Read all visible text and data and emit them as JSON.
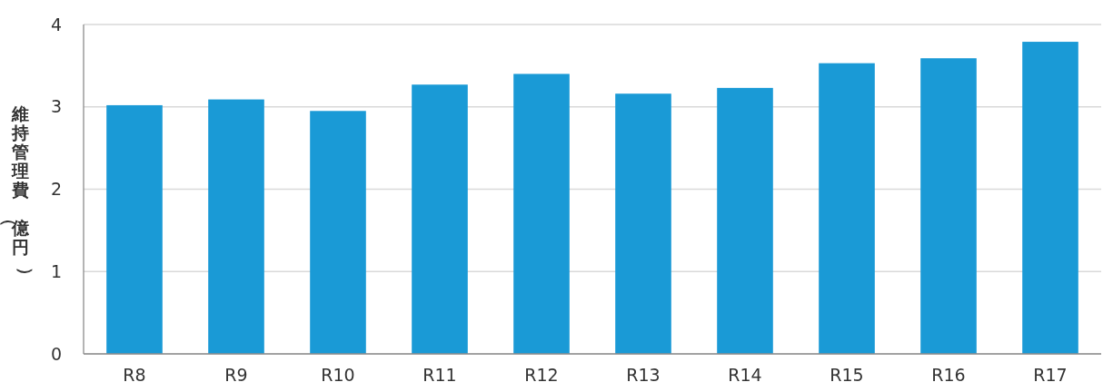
{
  "chart_data": {
    "type": "bar",
    "ylabel": "維持管理費（億円）",
    "categories": [
      "R8",
      "R9",
      "R10",
      "R11",
      "R12",
      "R13",
      "R14",
      "R15",
      "R16",
      "R17"
    ],
    "values": [
      3.02,
      3.09,
      2.95,
      3.27,
      3.4,
      3.16,
      3.23,
      3.53,
      3.59,
      3.79
    ],
    "color": "#1a9ad6",
    "ylim": [
      0,
      4
    ],
    "yticks": [
      0,
      1,
      2,
      3,
      4
    ],
    "grid": "y"
  }
}
